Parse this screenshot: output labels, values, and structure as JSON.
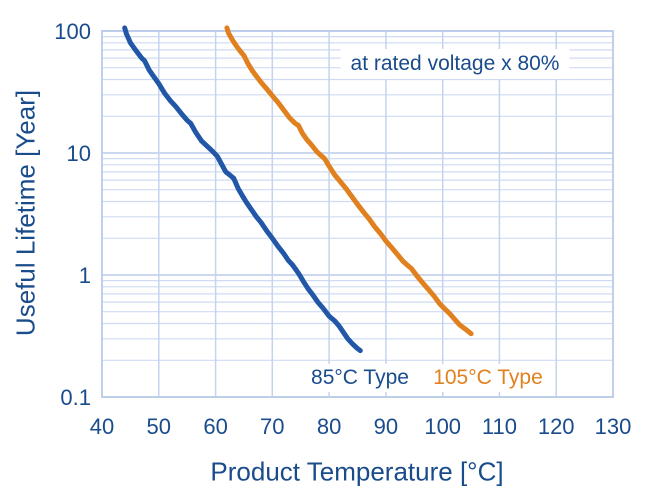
{
  "figure": {
    "background": "#ffffff",
    "colors": {
      "text_navy": "#1A4C8C",
      "grid_minor": "#CFDBF2",
      "grid_major": "#C5D3EE",
      "plot_border": "#BCCCE9",
      "series_blue": "#2257A8",
      "series_orange": "#E0801F"
    }
  },
  "chart_data": {
    "type": "line",
    "title": "",
    "xlabel": "Product Temperature [°C]",
    "ylabel": "Useful Lifetime [Year]",
    "annotation": "at rated voltage x 80%",
    "x_scale": "linear",
    "y_scale": "log",
    "xlim": [
      40,
      130
    ],
    "ylim": [
      0.1,
      100
    ],
    "x_ticks": [
      40,
      50,
      60,
      70,
      80,
      90,
      100,
      110,
      120,
      130
    ],
    "y_ticks": [
      100,
      10,
      1,
      0.1
    ],
    "y_tick_labels": [
      "100",
      "10",
      "1",
      "0.1"
    ],
    "minor_grid_decades": [
      0.1,
      1,
      10
    ],
    "grid": "on",
    "legend_position": "inside-bottom",
    "series": [
      {
        "name": "85°C Type",
        "color": "#2257A8",
        "label_color": "#1A4C8C",
        "points": [
          [
            44,
            106
          ],
          [
            44.3,
            95
          ],
          [
            45,
            80
          ],
          [
            45.7,
            72
          ],
          [
            46.3,
            66
          ],
          [
            47,
            60
          ],
          [
            47.5,
            57
          ],
          [
            48.3,
            48
          ],
          [
            49,
            43
          ],
          [
            50,
            37
          ],
          [
            51,
            31
          ],
          [
            52,
            27
          ],
          [
            53,
            24
          ],
          [
            54,
            21
          ],
          [
            55,
            18.5
          ],
          [
            55.6,
            17.5
          ],
          [
            56.5,
            14.8
          ],
          [
            57.5,
            12.6
          ],
          [
            58.5,
            11.4
          ],
          [
            59.5,
            10.3
          ],
          [
            60.3,
            9.4
          ],
          [
            61,
            8.2
          ],
          [
            61.8,
            7.0
          ],
          [
            62.5,
            6.6
          ],
          [
            63.2,
            6.2
          ],
          [
            64,
            5.1
          ],
          [
            64.8,
            4.4
          ],
          [
            65.5,
            3.9
          ],
          [
            66.3,
            3.45
          ],
          [
            67.2,
            3.0
          ],
          [
            68,
            2.7
          ],
          [
            69,
            2.3
          ],
          [
            70,
            2.0
          ],
          [
            71,
            1.72
          ],
          [
            72,
            1.5
          ],
          [
            72.8,
            1.32
          ],
          [
            73.5,
            1.22
          ],
          [
            74.2,
            1.1
          ],
          [
            74.8,
            1.0
          ],
          [
            75.5,
            0.88
          ],
          [
            76.3,
            0.77
          ],
          [
            77,
            0.7
          ],
          [
            78,
            0.6
          ],
          [
            79,
            0.53
          ],
          [
            80,
            0.46
          ],
          [
            81,
            0.42
          ],
          [
            81.8,
            0.38
          ],
          [
            82.5,
            0.34
          ],
          [
            83.3,
            0.3
          ],
          [
            84.2,
            0.27
          ],
          [
            85,
            0.25
          ],
          [
            85.5,
            0.24
          ]
        ]
      },
      {
        "name": "105°C Type",
        "color": "#E0801F",
        "label_color": "#E0801F",
        "points": [
          [
            62,
            106
          ],
          [
            62.3,
            96
          ],
          [
            63,
            84
          ],
          [
            63.8,
            74
          ],
          [
            64.5,
            67
          ],
          [
            65,
            63
          ],
          [
            65.8,
            53
          ],
          [
            66.5,
            47
          ],
          [
            67.3,
            42
          ],
          [
            68,
            38
          ],
          [
            69,
            33.5
          ],
          [
            70,
            29.5
          ],
          [
            71,
            26
          ],
          [
            72,
            22.5
          ],
          [
            73,
            19.5
          ],
          [
            74,
            17.5
          ],
          [
            74.6,
            16.8
          ],
          [
            75.3,
            14.5
          ],
          [
            76,
            13
          ],
          [
            77,
            11.5
          ],
          [
            77.8,
            10.3
          ],
          [
            78.6,
            9.5
          ],
          [
            79.2,
            9.0
          ],
          [
            80,
            7.8
          ],
          [
            81,
            6.6
          ],
          [
            82,
            5.8
          ],
          [
            83,
            5.1
          ],
          [
            84,
            4.4
          ],
          [
            85,
            3.8
          ],
          [
            86,
            3.3
          ],
          [
            87,
            2.9
          ],
          [
            88,
            2.5
          ],
          [
            89,
            2.2
          ],
          [
            90,
            1.9
          ],
          [
            91,
            1.68
          ],
          [
            92,
            1.48
          ],
          [
            93,
            1.3
          ],
          [
            93.8,
            1.2
          ],
          [
            94.5,
            1.13
          ],
          [
            95.5,
            0.98
          ],
          [
            96.5,
            0.86
          ],
          [
            97.5,
            0.76
          ],
          [
            98.5,
            0.67
          ],
          [
            99.5,
            0.58
          ],
          [
            100.5,
            0.52
          ],
          [
            101.3,
            0.48
          ],
          [
            102,
            0.44
          ],
          [
            103,
            0.39
          ],
          [
            104,
            0.36
          ],
          [
            105,
            0.33
          ]
        ]
      }
    ]
  }
}
